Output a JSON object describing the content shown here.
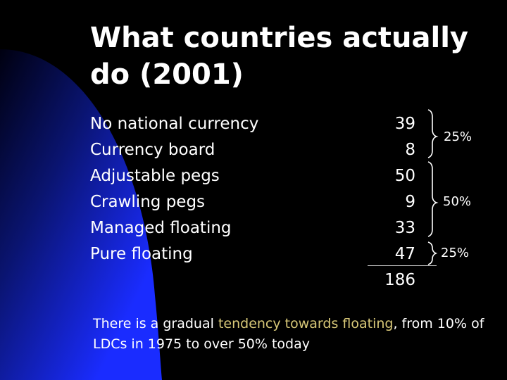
{
  "slide": {
    "title": "What countries actually do (2001)",
    "rows": [
      {
        "label": "No national currency",
        "value": "39"
      },
      {
        "label": "Currency board",
        "value": "8"
      },
      {
        "label": "Adjustable pegs",
        "value": "50"
      },
      {
        "label": "Crawling pegs",
        "value": "9"
      },
      {
        "label": "Managed floating",
        "value": "33"
      },
      {
        "label": "Pure floating",
        "value": "47"
      }
    ],
    "total": "186",
    "group_shares": [
      "25%",
      "50%",
      "25%"
    ],
    "note": {
      "part1": "There is a gradual ",
      "highlight": "tendency towards floating",
      "part2": ", from 10% of LDCs in 1975 to over 50% today"
    }
  },
  "colors": {
    "background": "#000000",
    "accent_shape": "#1a2cff",
    "text": "#ffffff",
    "highlight": "#d8c878"
  }
}
